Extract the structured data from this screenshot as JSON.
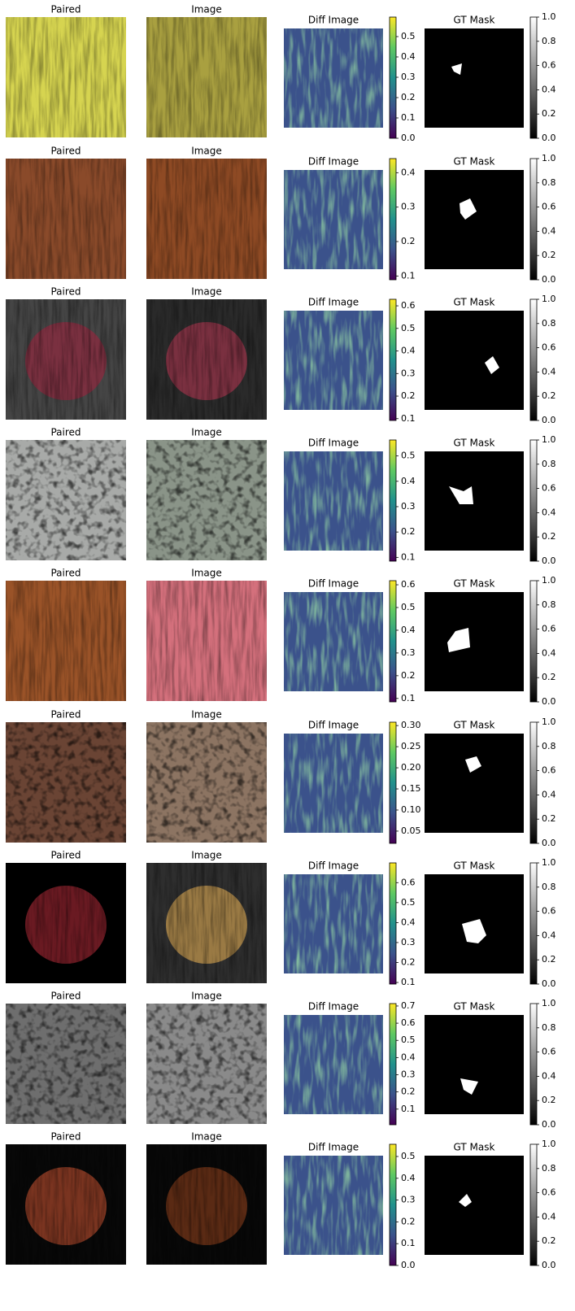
{
  "rows": [
    {
      "titles": [
        "Paired",
        "Image",
        "Diff Image",
        "GT Mask"
      ],
      "diff_colorbar": {
        "range": [
          0,
          0.596
        ],
        "ticks": [
          {
            "value": 0,
            "label": "0.0"
          },
          0.1,
          0.2,
          0.3,
          0.4,
          0.5
        ]
      },
      "mask_colorbar": {
        "range": [
          0,
          1
        ],
        "ticks": [
          {
            "value": 0,
            "label": "0.0"
          },
          0.2,
          0.4,
          0.6,
          0.8,
          {
            "value": 1,
            "label": "1.0"
          }
        ]
      }
    },
    {
      "titles": [
        "Paired",
        "Image",
        "Diff Image",
        "GT Mask"
      ],
      "diff_colorbar": {
        "range": [
          0.089,
          0.441
        ],
        "ticks": [
          0.1,
          0.2,
          0.3,
          0.4
        ]
      },
      "mask_colorbar": {
        "range": [
          0,
          1
        ],
        "ticks": [
          {
            "value": 0,
            "label": "0.0"
          },
          0.2,
          0.4,
          0.6,
          0.8,
          {
            "value": 1,
            "label": "1.0"
          }
        ]
      }
    },
    {
      "titles": [
        "Paired",
        "Image",
        "Diff Image",
        "GT Mask"
      ],
      "diff_colorbar": {
        "range": [
          0.092,
          0.629
        ],
        "ticks": [
          0.1,
          0.2,
          0.3,
          0.4,
          0.5,
          0.6
        ]
      },
      "mask_colorbar": {
        "range": [
          0,
          1
        ],
        "ticks": [
          {
            "value": 0,
            "label": "0.0"
          },
          0.2,
          0.4,
          0.6,
          0.8,
          {
            "value": 1,
            "label": "1.0"
          }
        ]
      }
    },
    {
      "titles": [
        "Paired",
        "Image",
        "Diff Image",
        "GT Mask"
      ],
      "diff_colorbar": {
        "range": [
          0.085,
          0.563
        ],
        "ticks": [
          0.1,
          0.2,
          0.3,
          0.4,
          0.5
        ]
      },
      "mask_colorbar": {
        "range": [
          0,
          1
        ],
        "ticks": [
          {
            "value": 0,
            "label": "0.0"
          },
          0.2,
          0.4,
          0.6,
          0.8,
          {
            "value": 1,
            "label": "1.0"
          }
        ]
      }
    },
    {
      "titles": [
        "Paired",
        "Image",
        "Diff Image",
        "GT Mask"
      ],
      "diff_colorbar": {
        "range": [
          0.085,
          0.618
        ],
        "ticks": [
          0.1,
          0.2,
          0.3,
          0.4,
          0.5,
          0.6
        ]
      },
      "mask_colorbar": {
        "range": [
          0,
          1
        ],
        "ticks": [
          {
            "value": 0,
            "label": "0.0"
          },
          0.2,
          0.4,
          0.6,
          0.8,
          {
            "value": 1,
            "label": "1.0"
          }
        ]
      }
    },
    {
      "titles": [
        "Paired",
        "Image",
        "Diff Image",
        "GT Mask"
      ],
      "diff_colorbar": {
        "range": [
          0.021,
          0.308
        ],
        "ticks": [
          0.05,
          {
            "value": 0.1,
            "label": "0.10"
          },
          0.15,
          {
            "value": 0.2,
            "label": "0.20"
          },
          0.25,
          {
            "value": 0.3,
            "label": "0.30"
          }
        ]
      },
      "mask_colorbar": {
        "range": [
          0,
          1
        ],
        "ticks": [
          {
            "value": 0,
            "label": "0.0"
          },
          0.2,
          0.4,
          0.6,
          0.8,
          {
            "value": 1,
            "label": "1.0"
          }
        ]
      }
    },
    {
      "titles": [
        "Paired",
        "Image",
        "Diff Image",
        "GT Mask"
      ],
      "diff_colorbar": {
        "range": [
          0.092,
          0.699
        ],
        "ticks": [
          0.1,
          0.2,
          0.3,
          0.4,
          0.5,
          0.6
        ]
      },
      "mask_colorbar": {
        "range": [
          0,
          1
        ],
        "ticks": [
          {
            "value": 0,
            "label": "0.0"
          },
          0.2,
          0.4,
          0.6,
          0.8,
          {
            "value": 1,
            "label": "1.0"
          }
        ]
      }
    },
    {
      "titles": [
        "Paired",
        "Image",
        "Diff Image",
        "GT Mask"
      ],
      "diff_colorbar": {
        "range": [
          0.009,
          0.714
        ],
        "ticks": [
          0.1,
          0.2,
          0.3,
          0.4,
          0.5,
          0.6,
          0.7
        ]
      },
      "mask_colorbar": {
        "range": [
          0,
          1
        ],
        "ticks": [
          {
            "value": 0,
            "label": "0.0"
          },
          0.2,
          0.4,
          0.6,
          0.8,
          {
            "value": 1,
            "label": "1.0"
          }
        ]
      }
    },
    {
      "titles": [
        "Paired",
        "Image",
        "Diff Image",
        "GT Mask"
      ],
      "diff_colorbar": {
        "range": [
          0,
          0.556
        ],
        "ticks": [
          {
            "value": 0,
            "label": "0.0"
          },
          0.1,
          0.2,
          0.3,
          0.4,
          0.5
        ]
      },
      "mask_colorbar": {
        "range": [
          0,
          1
        ],
        "ticks": [
          {
            "value": 0,
            "label": "0.0"
          },
          0.2,
          0.4,
          0.6,
          0.8,
          {
            "value": 1,
            "label": "1.0"
          }
        ]
      }
    }
  ]
}
